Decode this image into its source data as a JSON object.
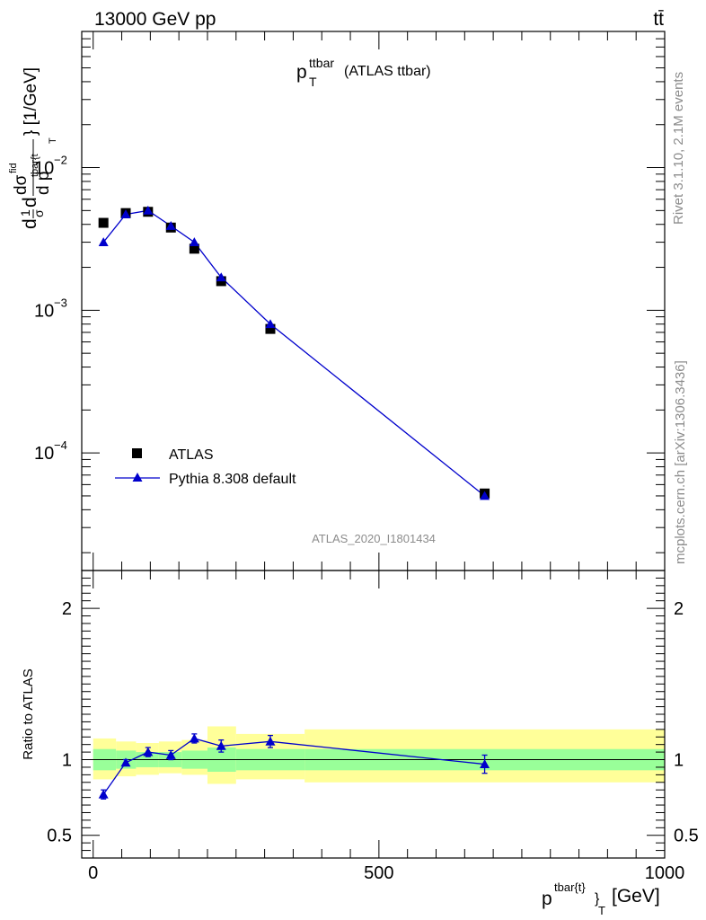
{
  "header": {
    "left": "13000 GeV pp",
    "right": "tt̄"
  },
  "plot_title": {
    "main": "p",
    "sup": "ttbar",
    "sub": "T",
    "suffix": "(ATLAS ttbar)"
  },
  "side_labels": {
    "rivet": "Rivet 3.1.10,  2.1M events",
    "mcplots": "mcplots.cern.ch [arXiv:1306.3436]"
  },
  "watermark": "ATLAS_2020_I1801434",
  "y_axis_label": {
    "d1": "d",
    "one": "1",
    "sigma": "σ",
    "d2": "d",
    "dsigma": "dσ",
    "fid": "fid",
    "dp": "d p",
    "tbart": "tbar{t",
    "T": "T",
    "unit": "} [1/GeV]"
  },
  "ratio_y_label": "Ratio to ATLAS",
  "x_axis_label": {
    "main": "p",
    "sup": "tbar{t}",
    "tail": "}",
    "sub": "T",
    "unit": "[GeV]"
  },
  "legend": {
    "data_label": "ATLAS",
    "mc_label": "Pythia 8.308 default"
  },
  "colors": {
    "data": "#000000",
    "mc": "#0000cc",
    "band_inner": "#99ff99",
    "band_outer": "#ffff99"
  },
  "chart_data": [
    {
      "type": "scatter",
      "panel": "main",
      "yscale": "log",
      "ylim": [
        1.5e-05,
        0.09
      ],
      "xlim": [
        -20,
        1000
      ],
      "y_ticks": [
        {
          "exp": "-4",
          "value": 0.0001
        },
        {
          "exp": "-3",
          "value": 0.001
        },
        {
          "exp": "-2",
          "value": 0.01
        }
      ],
      "tick_base": "10",
      "series": [
        {
          "name": "ATLAS",
          "marker": "square",
          "x": [
            18,
            57,
            96,
            136,
            177,
            224,
            310,
            685
          ],
          "y": [
            0.0041,
            0.0048,
            0.0049,
            0.0038,
            0.0027,
            0.0016,
            0.00074,
            5.2e-05
          ]
        },
        {
          "name": "Pythia 8.308 default",
          "marker": "triangle",
          "x": [
            18,
            57,
            96,
            136,
            177,
            224,
            310,
            685
          ],
          "y": [
            0.003,
            0.0047,
            0.005,
            0.0039,
            0.003,
            0.0017,
            0.0008,
            5e-05
          ]
        }
      ]
    },
    {
      "type": "line",
      "panel": "ratio",
      "xlim": [
        -20,
        1000
      ],
      "ylim": [
        0.35,
        2.25
      ],
      "y_ticks": [
        "0.5",
        "1",
        "2"
      ],
      "y_tick_values": [
        0.5,
        1,
        2
      ],
      "x_ticks": [
        "0",
        "500",
        "1000"
      ],
      "x_tick_values": [
        0,
        500,
        1000
      ],
      "ratio_points": {
        "x": [
          18,
          57,
          96,
          136,
          177,
          224,
          310,
          685
        ],
        "y": [
          0.77,
          0.98,
          1.05,
          1.03,
          1.14,
          1.09,
          1.12,
          0.97
        ],
        "err": [
          0.03,
          0.02,
          0.03,
          0.03,
          0.03,
          0.04,
          0.04,
          0.06
        ]
      },
      "bands": [
        {
          "x0": 0,
          "x1": 40,
          "inner": [
            0.93,
            1.07
          ],
          "outer": [
            0.87,
            1.14
          ]
        },
        {
          "x0": 40,
          "x1": 75,
          "inner": [
            0.94,
            1.06
          ],
          "outer": [
            0.89,
            1.12
          ]
        },
        {
          "x0": 75,
          "x1": 115,
          "inner": [
            0.95,
            1.05
          ],
          "outer": [
            0.9,
            1.11
          ]
        },
        {
          "x0": 115,
          "x1": 155,
          "inner": [
            0.95,
            1.05
          ],
          "outer": [
            0.91,
            1.12
          ]
        },
        {
          "x0": 155,
          "x1": 200,
          "inner": [
            0.94,
            1.06
          ],
          "outer": [
            0.9,
            1.13
          ]
        },
        {
          "x0": 200,
          "x1": 250,
          "inner": [
            0.92,
            1.08
          ],
          "outer": [
            0.84,
            1.22
          ]
        },
        {
          "x0": 250,
          "x1": 370,
          "inner": [
            0.93,
            1.07
          ],
          "outer": [
            0.87,
            1.17
          ]
        },
        {
          "x0": 370,
          "x1": 1000,
          "inner": [
            0.93,
            1.07
          ],
          "outer": [
            0.85,
            1.2
          ]
        }
      ]
    }
  ]
}
